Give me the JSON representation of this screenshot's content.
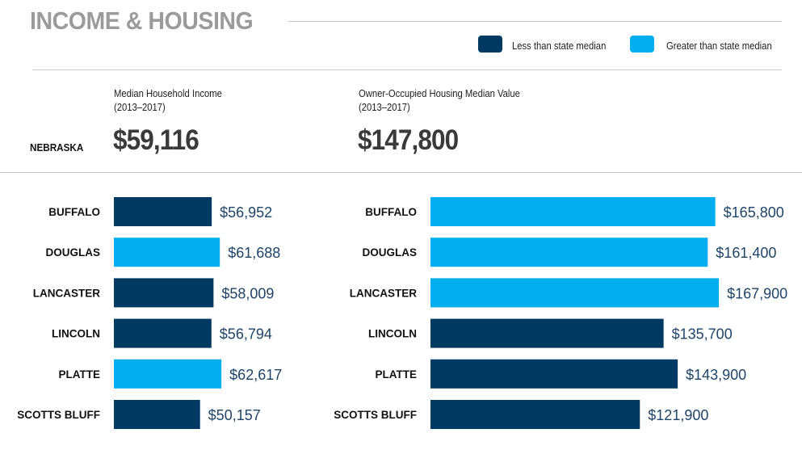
{
  "title": "INCOME & HOUSING",
  "legend": [
    {
      "label": "Less than state median",
      "color": "#003a63"
    },
    {
      "label": "Greater than state median",
      "color": "#00aeef"
    }
  ],
  "state": {
    "name": "NEBRASKA",
    "income": "$59,116",
    "housing": "$147,800"
  },
  "chart_data": [
    {
      "type": "bar",
      "orientation": "horizontal",
      "title": "Median Household Income",
      "subtitle": "(2013–2017)",
      "categories": [
        "BUFFALO",
        "DOUGLAS",
        "LANCASTER",
        "LINCOLN",
        "PLATTE",
        "SCOTTS BLUFF"
      ],
      "values": [
        56952,
        61688,
        58009,
        56794,
        62617,
        50157
      ],
      "labels": [
        "$56,952",
        "$61,688",
        "$58,009",
        "$56,794",
        "$62,617",
        "$50,157"
      ],
      "reference": 59116,
      "colors": [
        "#003a63",
        "#00aeef",
        "#003a63",
        "#003a63",
        "#00aeef",
        "#003a63"
      ]
    },
    {
      "type": "bar",
      "orientation": "horizontal",
      "title": "Owner-Occupied Housing Median Value",
      "subtitle": "(2013–2017)",
      "categories": [
        "BUFFALO",
        "DOUGLAS",
        "LANCASTER",
        "LINCOLN",
        "PLATTE",
        "SCOTTS BLUFF"
      ],
      "values": [
        165800,
        161400,
        167900,
        135700,
        143900,
        121900
      ],
      "labels": [
        "$165,800",
        "$161,400",
        "$167,900",
        "$135,700",
        "$143,900",
        "$121,900"
      ],
      "reference": 147800,
      "colors": [
        "#00aeef",
        "#00aeef",
        "#00aeef",
        "#003a63",
        "#003a63",
        "#003a63"
      ]
    }
  ]
}
